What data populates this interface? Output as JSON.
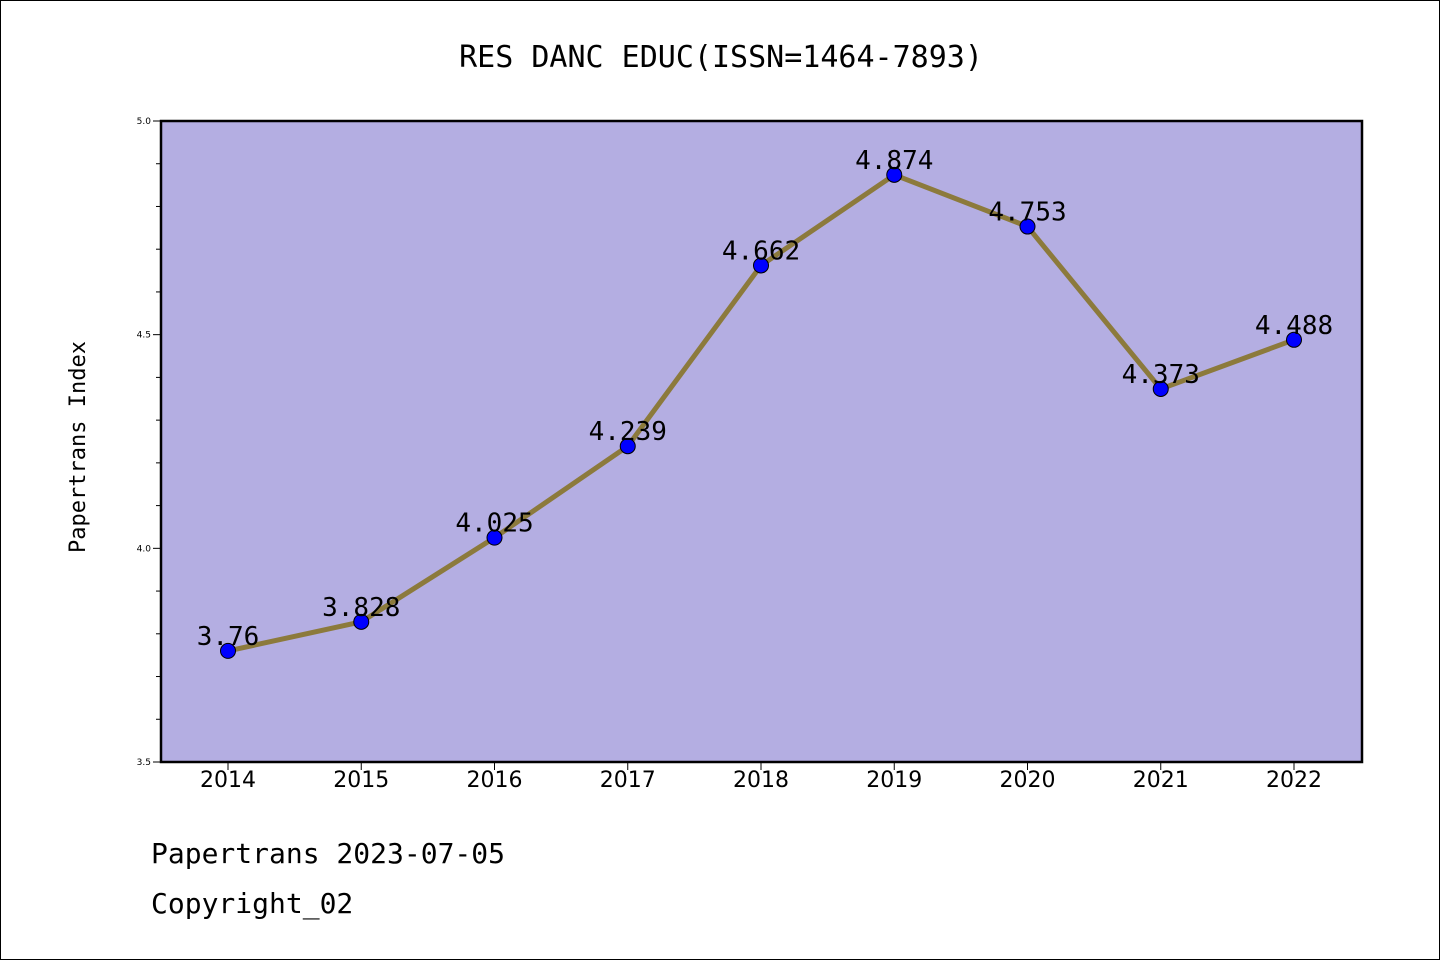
{
  "chart_data": {
    "type": "line",
    "title": "RES DANC EDUC(ISSN=1464-7893)",
    "ylabel": "Papertrans Index",
    "xlabel": "",
    "categories": [
      "2014",
      "2015",
      "2016",
      "2017",
      "2018",
      "2019",
      "2020",
      "2021",
      "2022"
    ],
    "values": [
      3.76,
      3.828,
      4.025,
      4.239,
      4.662,
      4.874,
      4.753,
      4.373,
      4.488
    ],
    "value_labels": [
      "3.76",
      "3.828",
      "4.025",
      "4.239",
      "4.662",
      "4.874",
      "4.753",
      "4.373",
      "4.488"
    ],
    "ylim": [
      3.5,
      5.0
    ],
    "yticks": [
      "3.5",
      "4.0",
      "4.5",
      "5.0"
    ],
    "grid": false,
    "colors": {
      "plot_background": "#b4aee2",
      "line": "#8c7a3c",
      "marker": "#0000ff"
    }
  },
  "footer": {
    "date_line": "Papertrans 2023-07-05",
    "copyright": "Copyright_02"
  }
}
